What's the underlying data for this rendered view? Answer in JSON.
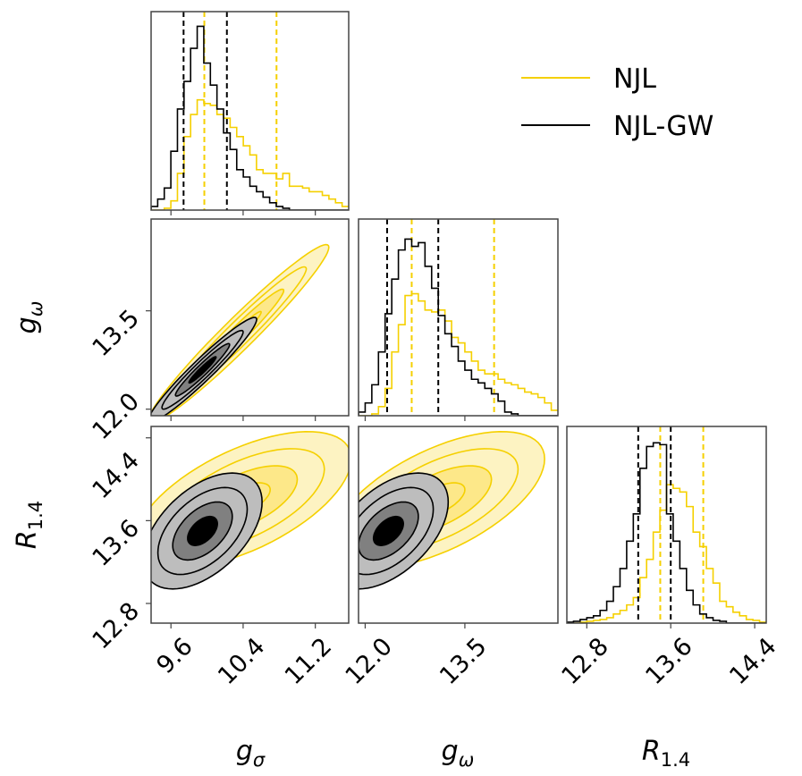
{
  "chart_data": {
    "type": "corner",
    "title": "",
    "legend": {
      "placement": "top-right",
      "entries": [
        {
          "label": "NJL",
          "color": "#f5d000"
        },
        {
          "label": "NJL-GW",
          "color": "#000000"
        }
      ]
    },
    "params": [
      {
        "id": "gs",
        "symbol": "g",
        "sub": "σ",
        "range": [
          9.38,
          11.57
        ],
        "ticks": [
          9.6,
          10.4,
          11.2
        ],
        "tick_labels": [
          "9.6",
          "10.4",
          "11.2"
        ]
      },
      {
        "id": "gw",
        "symbol": "g",
        "sub": "ω",
        "range": [
          11.9,
          14.9
        ],
        "ticks": [
          12.0,
          13.5
        ],
        "tick_labels": [
          "12.0",
          "13.5"
        ]
      },
      {
        "id": "R",
        "symbol": "R",
        "sub": "1.4",
        "range": [
          12.61,
          14.51
        ],
        "ticks": [
          12.8,
          13.6,
          14.4
        ],
        "tick_labels": [
          "12.8",
          "13.6",
          "14.4"
        ]
      }
    ],
    "histograms": [
      {
        "param": 0,
        "series": [
          {
            "name": "NJL",
            "color": "#f5d000",
            "quantiles": [
              9.97,
              10.77
            ],
            "counts": [
              0,
              0,
              0.01,
              0.05,
              0.2,
              0.4,
              0.52,
              0.6,
              0.58,
              0.57,
              0.52,
              0.5,
              0.45,
              0.4,
              0.35,
              0.3,
              0.22,
              0.2,
              0.2,
              0.17,
              0.2,
              0.13,
              0.13,
              0.12,
              0.1,
              0.1,
              0.08,
              0.06,
              0.04,
              0.02
            ]
          },
          {
            "name": "NJL-GW",
            "color": "#000000",
            "quantiles": [
              9.74,
              10.22
            ],
            "counts": [
              0.02,
              0.06,
              0.12,
              0.32,
              0.55,
              0.7,
              0.88,
              1.0,
              0.8,
              0.68,
              0.55,
              0.42,
              0.33,
              0.22,
              0.18,
              0.13,
              0.1,
              0.07,
              0.04,
              0.02,
              0.01,
              0,
              0,
              0,
              0,
              0,
              0,
              0,
              0,
              0
            ]
          }
        ]
      },
      {
        "param": 1,
        "series": [
          {
            "name": "NJL",
            "color": "#f5d000",
            "quantiles": [
              12.7,
              13.94
            ],
            "counts": [
              0,
              0,
              0.01,
              0.05,
              0.15,
              0.35,
              0.5,
              0.66,
              0.67,
              0.63,
              0.58,
              0.57,
              0.58,
              0.52,
              0.43,
              0.4,
              0.35,
              0.3,
              0.25,
              0.23,
              0.23,
              0.2,
              0.18,
              0.17,
              0.15,
              0.13,
              0.12,
              0.1,
              0.07,
              0.03
            ]
          },
          {
            "name": "NJL-GW",
            "color": "#000000",
            "quantiles": [
              12.33,
              13.1
            ],
            "counts": [
              0.02,
              0.07,
              0.17,
              0.35,
              0.56,
              0.75,
              0.91,
              0.97,
              0.93,
              0.95,
              0.82,
              0.7,
              0.55,
              0.45,
              0.38,
              0.3,
              0.25,
              0.2,
              0.18,
              0.15,
              0.12,
              0.08,
              0.02,
              0.01,
              0,
              0,
              0,
              0,
              0,
              0
            ]
          }
        ]
      },
      {
        "param": 2,
        "series": [
          {
            "name": "NJL",
            "color": "#f5d000",
            "quantiles": [
              13.5,
              13.91
            ],
            "counts": [
              0,
              0,
              0.005,
              0.01,
              0.015,
              0.02,
              0.03,
              0.05,
              0.07,
              0.1,
              0.14,
              0.25,
              0.35,
              0.5,
              0.62,
              0.76,
              0.74,
              0.72,
              0.64,
              0.5,
              0.42,
              0.3,
              0.22,
              0.12,
              0.09,
              0.06,
              0.04,
              0.02,
              0.015,
              0.005
            ]
          },
          {
            "name": "NJL-GW",
            "color": "#000000",
            "quantiles": [
              13.29,
              13.6
            ],
            "counts": [
              0.005,
              0.01,
              0.02,
              0.03,
              0.04,
              0.07,
              0.12,
              0.2,
              0.3,
              0.45,
              0.6,
              0.85,
              0.97,
              0.99,
              0.98,
              0.6,
              0.45,
              0.3,
              0.18,
              0.1,
              0.05,
              0.03,
              0.015,
              0.01,
              0,
              0,
              0,
              0,
              0,
              0
            ]
          }
        ]
      }
    ],
    "contour_levels_sigma": [
      0.5,
      1.0,
      1.5,
      2.0
    ],
    "contours": [
      {
        "x": 0,
        "y": 1,
        "series": [
          {
            "name": "NJL",
            "mean": [
              10.35,
              13.15
            ],
            "sigma": [
              0.5,
              0.68
            ],
            "rho": 0.97
          },
          {
            "name": "NJL-GW",
            "mean": [
              9.95,
              12.6
            ],
            "sigma": [
              0.3,
              0.4
            ],
            "rho": 0.96
          }
        ]
      },
      {
        "x": 0,
        "y": 2,
        "series": [
          {
            "name": "NJL",
            "mean": [
              10.4,
              13.8
            ],
            "sigma": [
              0.6,
              0.33
            ],
            "rho": 0.6
          },
          {
            "name": "NJL-GW",
            "mean": [
              9.95,
              13.5
            ],
            "sigma": [
              0.33,
              0.28
            ],
            "rho": 0.5
          }
        ]
      },
      {
        "x": 1,
        "y": 2,
        "series": [
          {
            "name": "NJL",
            "mean": [
              13.1,
              13.8
            ],
            "sigma": [
              0.8,
              0.33
            ],
            "rho": 0.6
          },
          {
            "name": "NJL-GW",
            "mean": [
              12.35,
              13.5
            ],
            "sigma": [
              0.45,
              0.28
            ],
            "rho": 0.5
          }
        ]
      }
    ]
  }
}
